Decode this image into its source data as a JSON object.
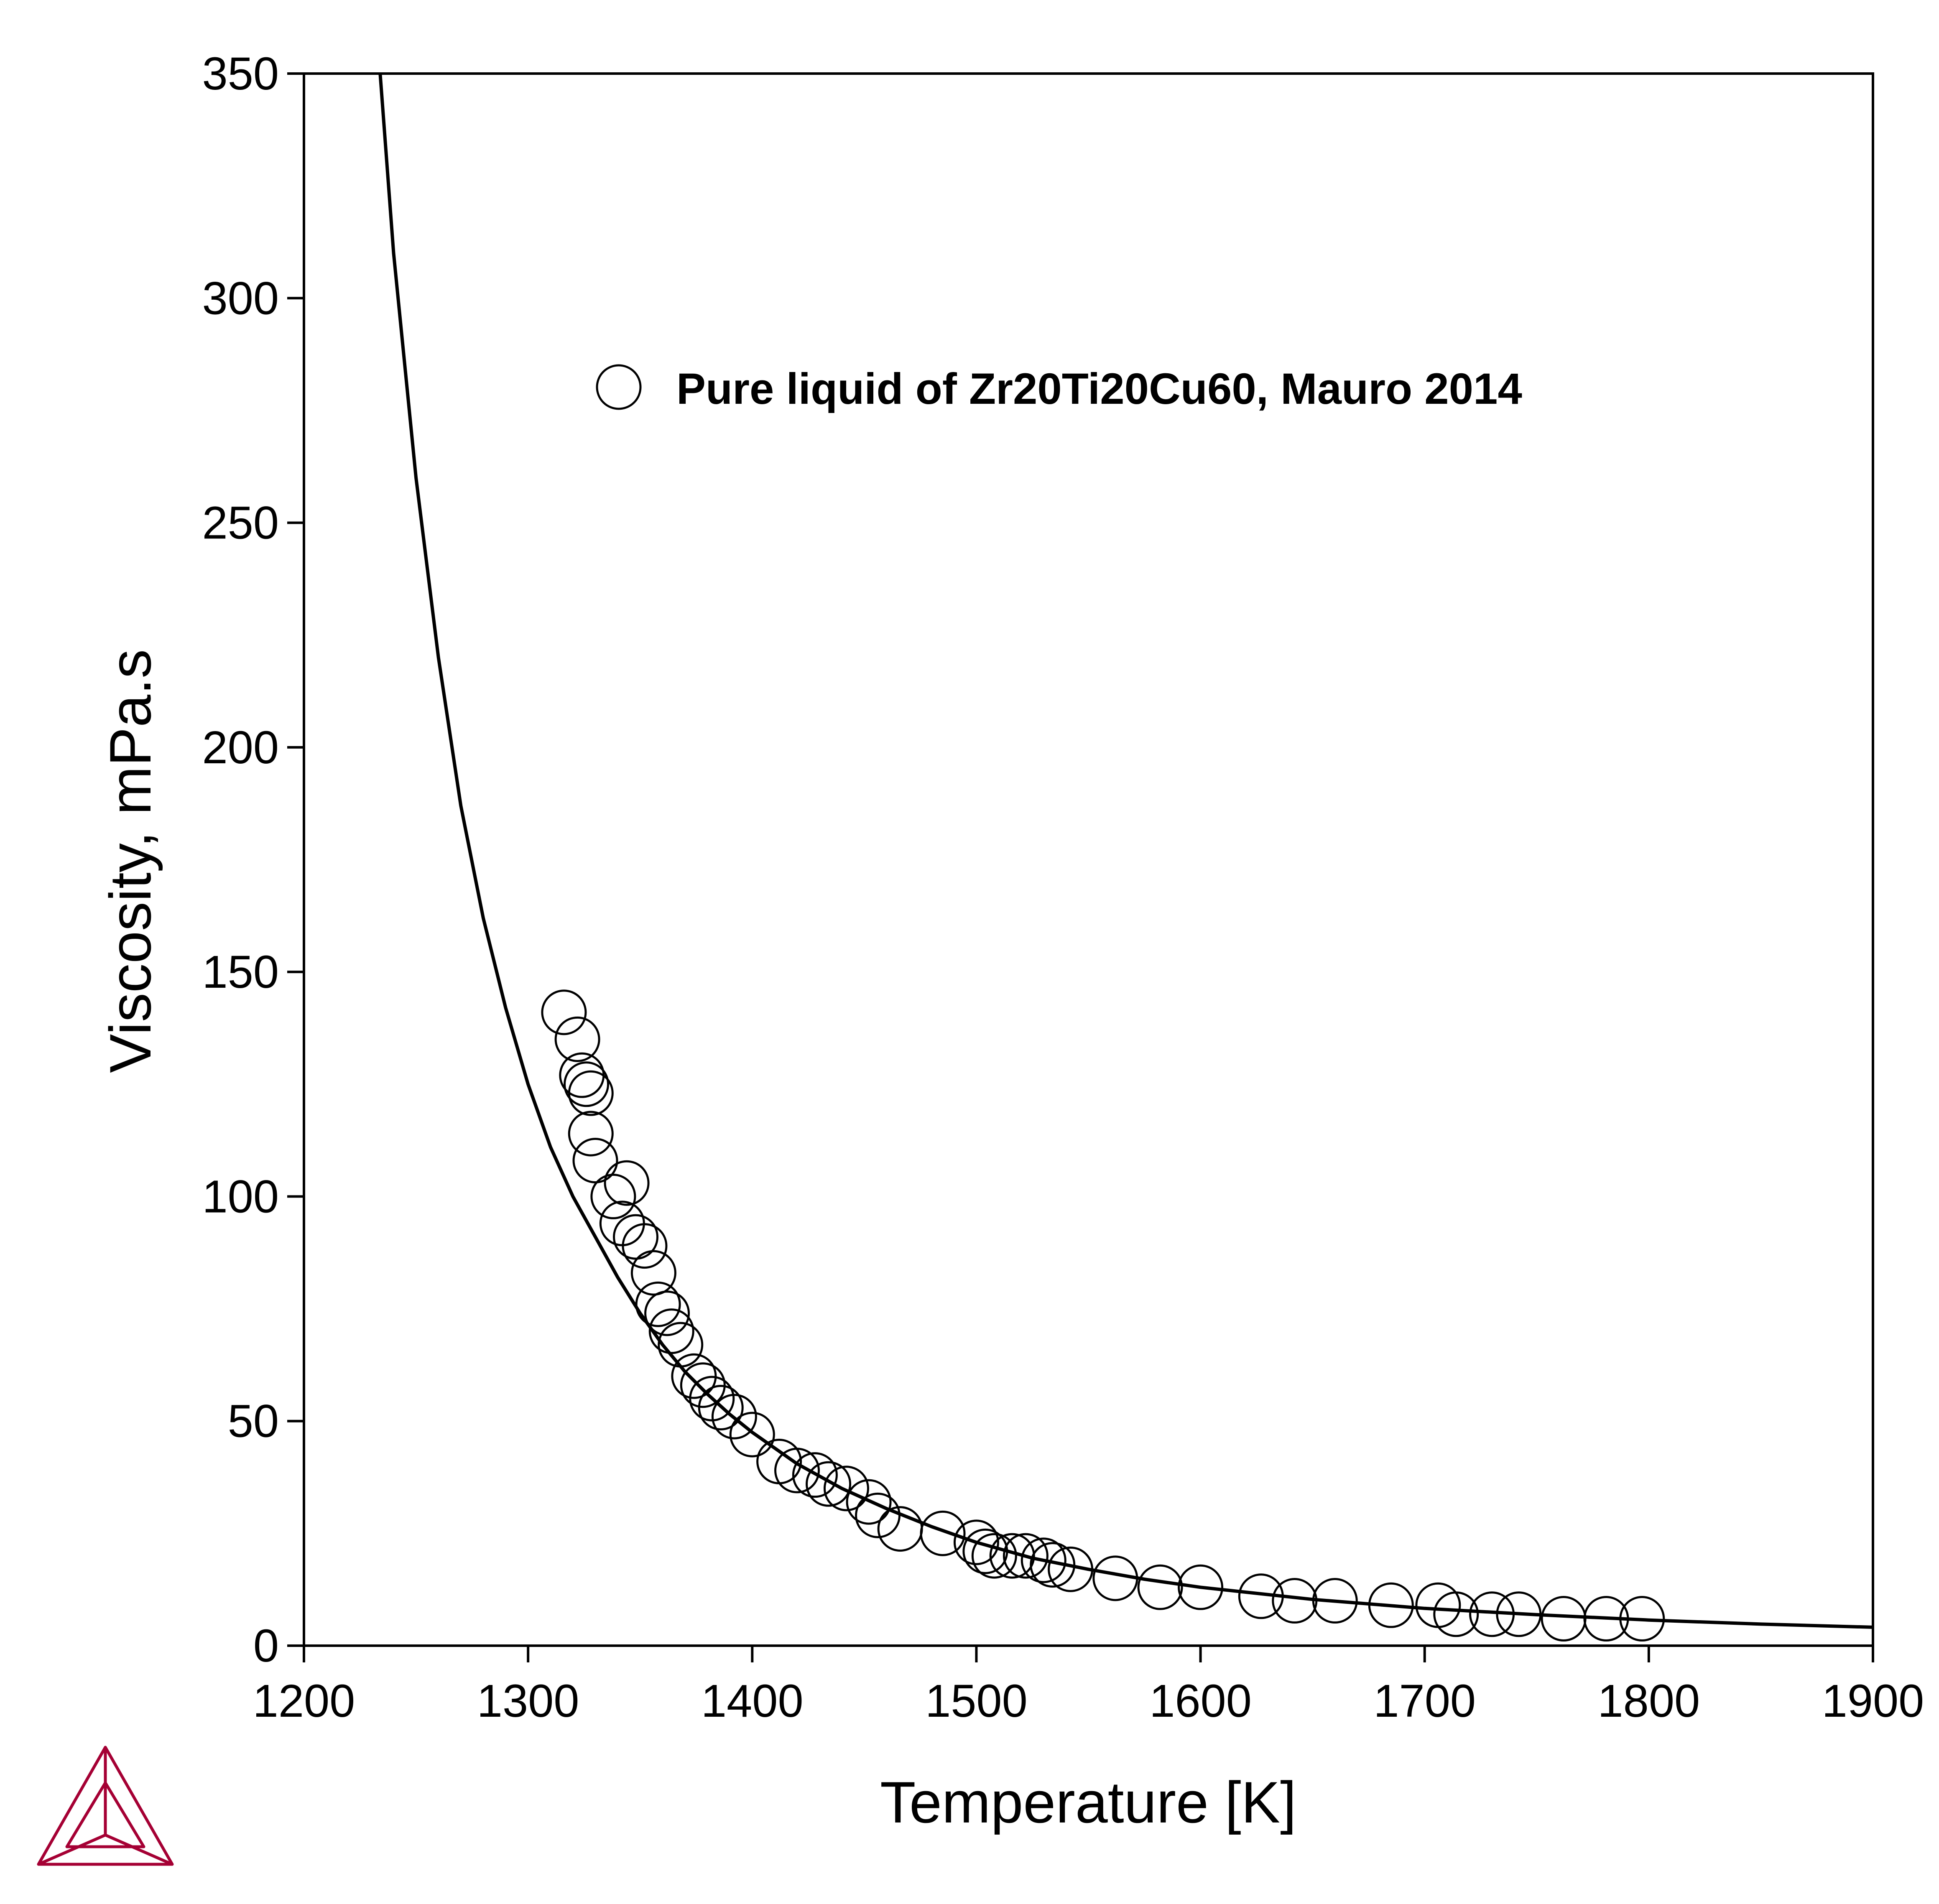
{
  "chart_data": {
    "type": "scatter",
    "title": "",
    "xlabel": "Temperature [K]",
    "ylabel": "Viscosity, mPa.s",
    "xlim": [
      1200,
      1900
    ],
    "ylim": [
      0,
      350
    ],
    "xticks": [
      "1200",
      "1300",
      "1400",
      "1500",
      "1600",
      "1700",
      "1800",
      "1900"
    ],
    "yticks": [
      "0",
      "50",
      "100",
      "150",
      "200",
      "250",
      "300",
      "350"
    ],
    "grid": false,
    "legend_position": "top-right",
    "series": [
      {
        "name": "Pure liquid of Zr20Ti20Cu60, Mauro 2014",
        "style": "open-circle",
        "color": "#000000",
        "x": [
          1316,
          1322,
          1324,
          1326,
          1328,
          1328,
          1330,
          1338,
          1344,
          1342,
          1348,
          1352,
          1356,
          1358,
          1362,
          1364,
          1368,
          1374,
          1378,
          1382,
          1386,
          1392,
          1400,
          1412,
          1420,
          1428,
          1434,
          1442,
          1452,
          1456,
          1466,
          1485,
          1500,
          1504,
          1508,
          1516,
          1522,
          1530,
          1534,
          1542,
          1562,
          1582,
          1600,
          1627,
          1642,
          1660,
          1685,
          1706,
          1714,
          1730,
          1742,
          1762,
          1781,
          1797
        ],
        "y": [
          141,
          135,
          127,
          125,
          123,
          114,
          108,
          100,
          103,
          94,
          91,
          89,
          83,
          76,
          74,
          70,
          67,
          60,
          58,
          55,
          53,
          51,
          47,
          41,
          39,
          38,
          36,
          35,
          32,
          29,
          26,
          25,
          23,
          21,
          20,
          20,
          20,
          19,
          18,
          17,
          15,
          13,
          13,
          11,
          10,
          10,
          9,
          9,
          7,
          7,
          7,
          6,
          6,
          6
        ]
      },
      {
        "name": "",
        "style": "line",
        "color": "#000000",
        "x": [
          1234,
          1240,
          1250,
          1260,
          1270,
          1280,
          1290,
          1300,
          1310,
          1320,
          1330,
          1340,
          1350,
          1360,
          1370,
          1380,
          1390,
          1400,
          1420,
          1440,
          1460,
          1480,
          1500,
          1525,
          1550,
          1575,
          1600,
          1650,
          1700,
          1750,
          1800,
          1850,
          1900
        ],
        "y": [
          350,
          310,
          260,
          220,
          187,
          162,
          142,
          125,
          111,
          100,
          91,
          82,
          74,
          67,
          61,
          56,
          51.5,
          47.5,
          40.5,
          35,
          30.5,
          26.5,
          23,
          19.5,
          17,
          14.8,
          13,
          10.3,
          8.3,
          6.9,
          5.7,
          4.8,
          4.1
        ]
      }
    ]
  },
  "colors": {
    "axis": "#000000",
    "logo": "#a50034"
  },
  "logo_icon": "triangle-logo-icon"
}
